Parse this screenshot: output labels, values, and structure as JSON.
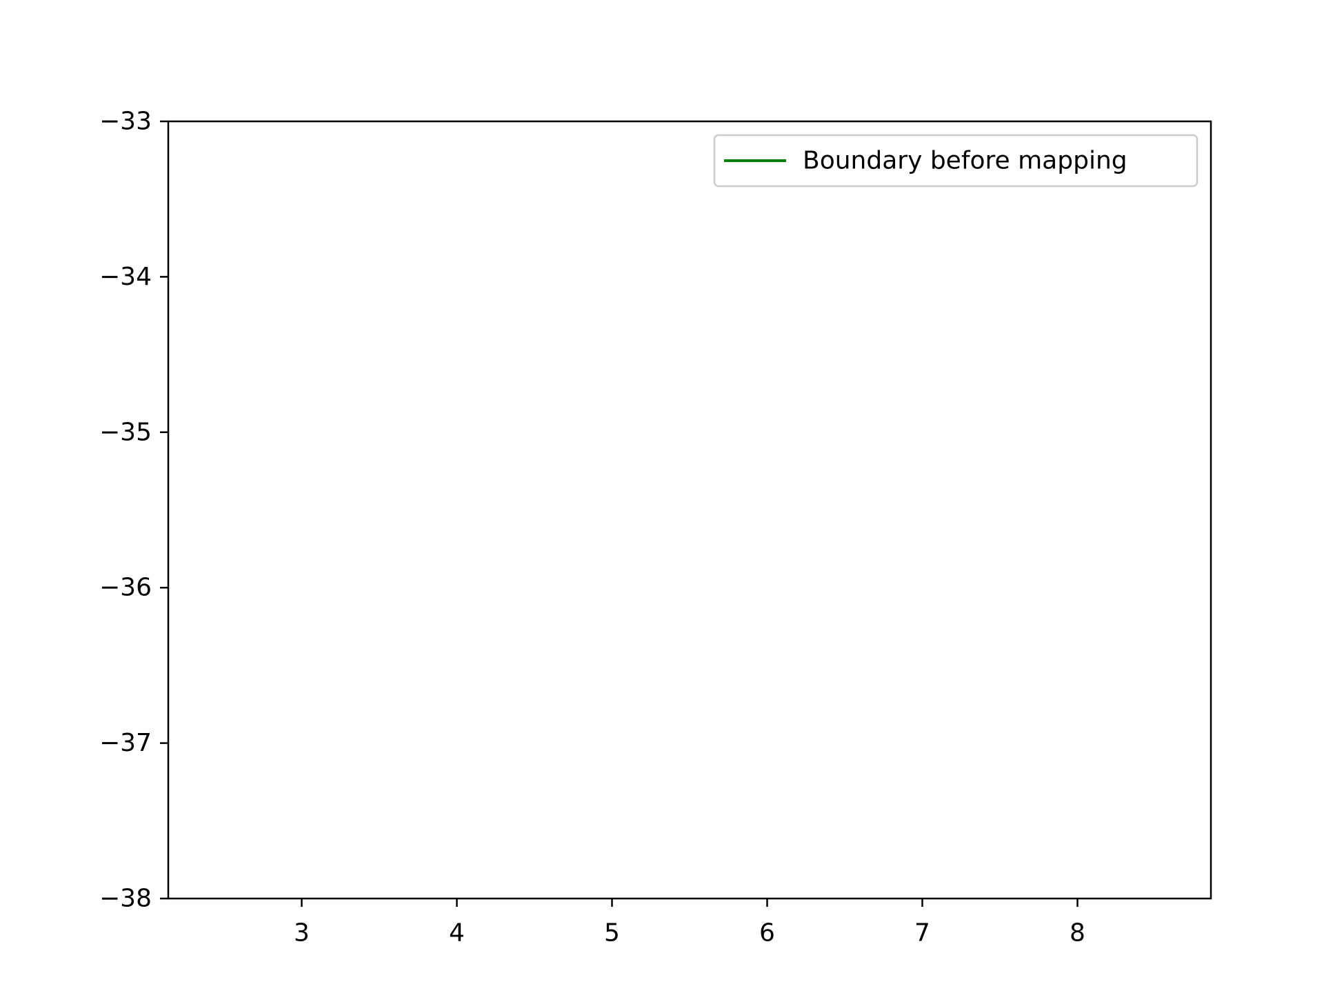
{
  "chart_data": {
    "type": "line",
    "title": "",
    "xlabel": "",
    "ylabel": "",
    "xlim": [
      2.14,
      8.86
    ],
    "ylim": [
      -38,
      -33
    ],
    "x_ticks": [
      3,
      4,
      5,
      6,
      7,
      8
    ],
    "y_ticks": [
      -33,
      -34,
      -35,
      -36,
      -37,
      -38
    ],
    "x_tick_labels": [
      "3",
      "4",
      "5",
      "6",
      "7",
      "8"
    ],
    "y_tick_labels": [
      "−33",
      "−34",
      "−35",
      "−36",
      "−37",
      "−38"
    ],
    "grid": false,
    "legend_position": "top-right",
    "series": [
      {
        "name": "Boundary before mapping",
        "color": "#008000",
        "x": [],
        "y": []
      }
    ]
  }
}
